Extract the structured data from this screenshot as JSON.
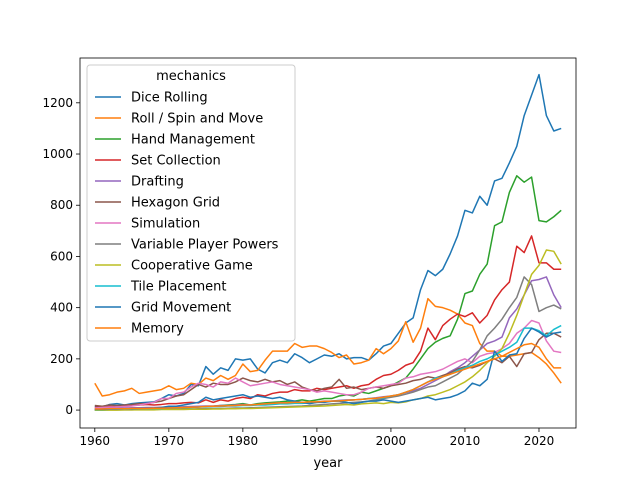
{
  "chart_data": {
    "type": "line",
    "title": "",
    "xlabel": "year",
    "ylabel": "",
    "xlim": [
      1958,
      2025
    ],
    "ylim": [
      -70,
      1375
    ],
    "xticks": [
      1960,
      1970,
      1980,
      1990,
      2000,
      2010,
      2020
    ],
    "yticks": [
      0,
      200,
      400,
      600,
      800,
      1000,
      1200
    ],
    "grid": false,
    "legend": {
      "title": "mechanics",
      "placement": "upper-left"
    },
    "x": [
      1960,
      1961,
      1962,
      1963,
      1964,
      1965,
      1966,
      1967,
      1968,
      1969,
      1970,
      1971,
      1972,
      1973,
      1974,
      1975,
      1976,
      1977,
      1978,
      1979,
      1980,
      1981,
      1982,
      1983,
      1984,
      1985,
      1986,
      1987,
      1988,
      1989,
      1990,
      1991,
      1992,
      1993,
      1994,
      1995,
      1996,
      1997,
      1998,
      1999,
      2000,
      2001,
      2002,
      2003,
      2004,
      2005,
      2006,
      2007,
      2008,
      2009,
      2010,
      2011,
      2012,
      2013,
      2014,
      2015,
      2016,
      2017,
      2018,
      2019,
      2020,
      2021,
      2022,
      2023
    ],
    "series": [
      {
        "name": "Dice Rolling",
        "color": "#1f77b4",
        "values": [
          15,
          12,
          22,
          25,
          20,
          25,
          28,
          30,
          32,
          45,
          60,
          55,
          65,
          100,
          95,
          170,
          140,
          165,
          155,
          200,
          195,
          200,
          160,
          145,
          185,
          195,
          185,
          220,
          205,
          185,
          200,
          215,
          210,
          220,
          200,
          205,
          205,
          195,
          220,
          250,
          260,
          300,
          340,
          360,
          470,
          545,
          525,
          550,
          610,
          680,
          780,
          770,
          835,
          800,
          895,
          905,
          965,
          1030,
          1150,
          1230,
          1310,
          1150,
          1090,
          1100
        ]
      },
      {
        "name": "Roll / Spin and Move",
        "color": "#ff7f0e",
        "values": [
          105,
          55,
          60,
          70,
          75,
          85,
          65,
          70,
          75,
          80,
          95,
          80,
          85,
          105,
          100,
          125,
          115,
          135,
          120,
          135,
          180,
          150,
          155,
          195,
          230,
          230,
          230,
          260,
          245,
          250,
          250,
          240,
          225,
          205,
          215,
          180,
          185,
          195,
          240,
          220,
          240,
          270,
          345,
          265,
          320,
          435,
          405,
          400,
          390,
          375,
          340,
          330,
          260,
          230,
          230,
          210,
          210,
          215,
          220,
          225,
          205,
          180,
          145,
          105
        ]
      },
      {
        "name": "Hand Management",
        "color": "#2ca02c",
        "values": [
          0,
          0,
          2,
          2,
          2,
          3,
          3,
          4,
          5,
          5,
          5,
          6,
          8,
          10,
          12,
          15,
          15,
          18,
          20,
          22,
          25,
          20,
          25,
          28,
          30,
          32,
          35,
          35,
          40,
          35,
          40,
          45,
          45,
          55,
          60,
          55,
          70,
          65,
          75,
          85,
          95,
          110,
          125,
          160,
          200,
          240,
          265,
          280,
          290,
          355,
          455,
          465,
          530,
          570,
          720,
          735,
          850,
          915,
          890,
          910,
          740,
          735,
          755,
          780
        ]
      },
      {
        "name": "Set Collection",
        "color": "#d62728",
        "values": [
          10,
          12,
          15,
          12,
          15,
          18,
          20,
          22,
          20,
          22,
          25,
          25,
          28,
          30,
          28,
          40,
          30,
          40,
          35,
          45,
          50,
          45,
          60,
          55,
          65,
          70,
          70,
          80,
          75,
          75,
          85,
          80,
          85,
          90,
          95,
          85,
          95,
          100,
          120,
          135,
          140,
          155,
          175,
          185,
          230,
          320,
          275,
          330,
          355,
          375,
          365,
          380,
          340,
          370,
          430,
          470,
          500,
          640,
          615,
          680,
          575,
          575,
          550,
          550
        ]
      },
      {
        "name": "Drafting",
        "color": "#9467bd",
        "values": [
          5,
          6,
          7,
          7,
          8,
          9,
          9,
          10,
          10,
          11,
          12,
          12,
          13,
          14,
          15,
          16,
          16,
          18,
          18,
          20,
          22,
          20,
          22,
          24,
          26,
          28,
          28,
          30,
          30,
          30,
          32,
          35,
          35,
          38,
          40,
          40,
          42,
          45,
          48,
          52,
          55,
          60,
          68,
          75,
          85,
          100,
          115,
          130,
          150,
          165,
          185,
          210,
          235,
          260,
          270,
          285,
          360,
          395,
          450,
          505,
          510,
          520,
          450,
          400
        ]
      },
      {
        "name": "Hexagon Grid",
        "color": "#8c564b",
        "values": [
          18,
          15,
          20,
          18,
          20,
          22,
          25,
          25,
          30,
          35,
          45,
          55,
          60,
          80,
          100,
          90,
          105,
          100,
          100,
          110,
          125,
          115,
          110,
          120,
          110,
          115,
          100,
          110,
          90,
          80,
          75,
          85,
          90,
          120,
          85,
          90,
          80,
          85,
          90,
          85,
          95,
          100,
          105,
          115,
          120,
          130,
          125,
          135,
          145,
          160,
          170,
          165,
          175,
          190,
          200,
          185,
          210,
          170,
          220,
          225,
          275,
          300,
          300,
          285
        ]
      },
      {
        "name": "Simulation",
        "color": "#e377c2",
        "values": [
          8,
          10,
          12,
          12,
          14,
          16,
          20,
          25,
          30,
          45,
          45,
          65,
          70,
          90,
          105,
          100,
          90,
          110,
          105,
          125,
          110,
          95,
          100,
          105,
          110,
          100,
          95,
          90,
          85,
          80,
          70,
          75,
          70,
          65,
          60,
          60,
          70,
          85,
          90,
          95,
          100,
          105,
          125,
          130,
          140,
          145,
          150,
          160,
          175,
          190,
          200,
          185,
          210,
          220,
          225,
          240,
          260,
          300,
          320,
          350,
          340,
          270,
          230,
          225
        ]
      },
      {
        "name": "Variable Player Powers",
        "color": "#7f7f7f",
        "values": [
          0,
          0,
          1,
          1,
          1,
          1,
          2,
          2,
          2,
          3,
          3,
          3,
          4,
          4,
          5,
          5,
          6,
          6,
          7,
          8,
          8,
          9,
          10,
          11,
          12,
          13,
          14,
          15,
          16,
          18,
          20,
          22,
          24,
          26,
          28,
          30,
          32,
          35,
          40,
          45,
          50,
          55,
          62,
          70,
          80,
          90,
          95,
          110,
          125,
          140,
          165,
          190,
          235,
          290,
          320,
          355,
          400,
          440,
          520,
          490,
          385,
          400,
          410,
          395
        ]
      },
      {
        "name": "Cooperative Game",
        "color": "#bcbd22",
        "values": [
          0,
          0,
          0,
          0,
          1,
          1,
          1,
          1,
          1,
          2,
          2,
          2,
          2,
          3,
          3,
          3,
          4,
          4,
          5,
          5,
          6,
          6,
          7,
          8,
          9,
          10,
          11,
          12,
          13,
          14,
          15,
          16,
          18,
          20,
          22,
          20,
          24,
          26,
          28,
          25,
          30,
          28,
          32,
          40,
          45,
          55,
          60,
          70,
          80,
          95,
          110,
          130,
          155,
          185,
          210,
          240,
          300,
          370,
          450,
          530,
          565,
          625,
          620,
          570
        ]
      },
      {
        "name": "Tile Placement",
        "color": "#17becf",
        "values": [
          2,
          2,
          3,
          3,
          4,
          4,
          5,
          5,
          6,
          6,
          8,
          8,
          10,
          10,
          12,
          12,
          14,
          14,
          16,
          16,
          18,
          18,
          20,
          20,
          22,
          24,
          24,
          26,
          26,
          28,
          30,
          32,
          34,
          36,
          38,
          40,
          42,
          45,
          45,
          48,
          55,
          60,
          70,
          80,
          95,
          110,
          125,
          130,
          140,
          155,
          165,
          175,
          190,
          200,
          215,
          230,
          245,
          265,
          320,
          320,
          310,
          290,
          315,
          330
        ]
      },
      {
        "name": "Grid Movement",
        "color": "#1f77b4",
        "values": [
          3,
          3,
          4,
          4,
          5,
          5,
          6,
          7,
          8,
          10,
          15,
          15,
          20,
          25,
          30,
          50,
          40,
          45,
          50,
          55,
          60,
          50,
          55,
          50,
          45,
          50,
          40,
          35,
          30,
          25,
          30,
          30,
          35,
          35,
          30,
          25,
          30,
          35,
          35,
          40,
          35,
          30,
          35,
          40,
          45,
          50,
          40,
          45,
          50,
          60,
          75,
          105,
          95,
          120,
          230,
          190,
          215,
          220,
          280,
          320,
          305,
          285,
          300,
          305
        ]
      },
      {
        "name": "Memory",
        "color": "#ff7f0e",
        "values": [
          4,
          4,
          5,
          5,
          5,
          6,
          6,
          6,
          7,
          7,
          8,
          9,
          10,
          11,
          12,
          14,
          15,
          16,
          17,
          18,
          20,
          20,
          22,
          24,
          26,
          28,
          28,
          30,
          30,
          32,
          32,
          34,
          35,
          36,
          38,
          40,
          42,
          44,
          46,
          50,
          55,
          60,
          70,
          80,
          95,
          110,
          120,
          130,
          140,
          150,
          160,
          170,
          180,
          190,
          200,
          210,
          225,
          240,
          255,
          260,
          245,
          200,
          165,
          165
        ]
      }
    ]
  }
}
